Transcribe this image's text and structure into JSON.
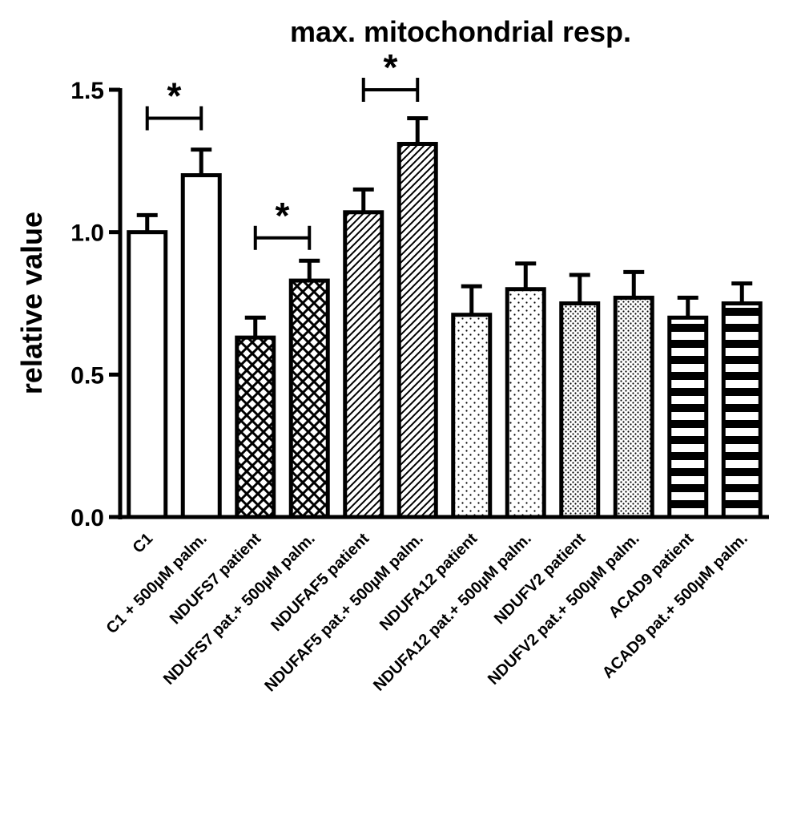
{
  "chart_data": {
    "type": "bar",
    "title": "max. mitochondrial resp.",
    "xlabel": "",
    "ylabel": "relative value",
    "ylim": [
      0,
      1.5
    ],
    "yticks": [
      0.0,
      0.5,
      1.0,
      1.5
    ],
    "ytick_labels": [
      "0.0",
      "0.5",
      "1.0",
      "1.5"
    ],
    "grid": false,
    "categories": [
      "C1",
      "C1 + 500µM palm.",
      "NDUFS7 patient",
      "NDUFS7 pat.+ 500µM palm.",
      "NDUFAF5 patient",
      "NDUFAF5 pat.+ 500µM palm.",
      "NDUFA12 patient",
      "NDUFA12 pat.+ 500µM palm.",
      "NDUFV2 patient",
      "NDUFV2 pat.+ 500µM palm.",
      "ACAD9 patient",
      "ACAD9 pat.+ 500µM palm."
    ],
    "values": [
      1.0,
      1.2,
      0.63,
      0.83,
      1.07,
      1.31,
      0.71,
      0.8,
      0.75,
      0.77,
      0.7,
      0.75
    ],
    "errors": [
      0.06,
      0.09,
      0.07,
      0.07,
      0.08,
      0.09,
      0.1,
      0.09,
      0.1,
      0.09,
      0.07,
      0.07
    ],
    "patterns": [
      "none",
      "none",
      "crosshatch",
      "crosshatch",
      "diagonal",
      "diagonal",
      "dots-sparse",
      "dots-sparse",
      "dots-dense",
      "dots-dense",
      "horizontal",
      "horizontal"
    ],
    "significance": [
      {
        "from": 0,
        "to": 1,
        "label": "*",
        "y": 1.4
      },
      {
        "from": 2,
        "to": 3,
        "label": "*",
        "y": 0.98
      },
      {
        "from": 4,
        "to": 5,
        "label": "*",
        "y": 1.5
      }
    ],
    "colors": {
      "bar_stroke": "#000000",
      "bar_fill": "#ffffff"
    }
  }
}
